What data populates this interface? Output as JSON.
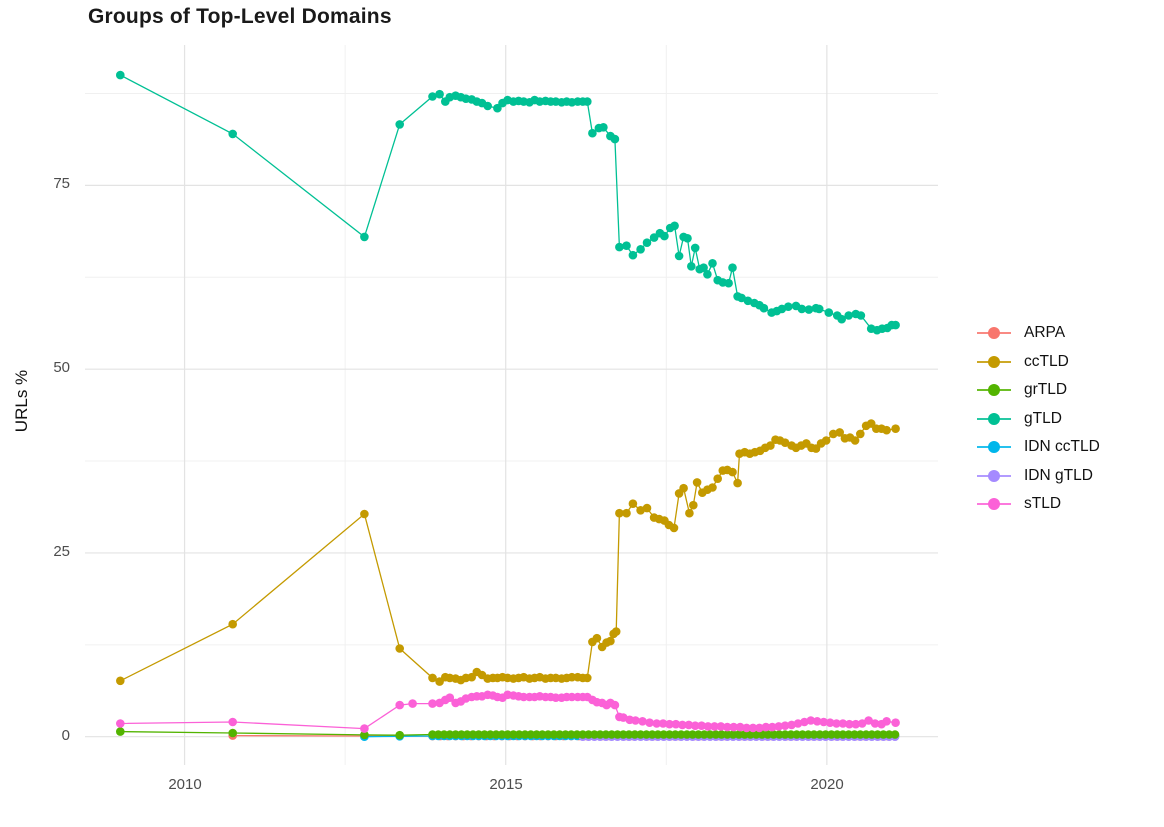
{
  "title": "Groups of Top-Level Domains",
  "y_axis": {
    "label": "URLs %",
    "tick_labels": [
      "0",
      "25",
      "50",
      "75"
    ],
    "major": [
      0,
      25,
      50,
      75
    ],
    "minor": [
      12.5,
      37.5,
      62.5,
      87.5
    ]
  },
  "x_axis": {
    "tick_labels": [
      "2010",
      "2015",
      "2020"
    ],
    "major": [
      2010,
      2015,
      2020
    ],
    "minor": [
      2012.5,
      2017.5
    ]
  },
  "legend": {
    "items": [
      {
        "label": "ARPA",
        "color": "#F8766D"
      },
      {
        "label": "ccTLD",
        "color": "#C49A00"
      },
      {
        "label": "grTLD",
        "color": "#53B400"
      },
      {
        "label": "gTLD",
        "color": "#00C094"
      },
      {
        "label": "IDN ccTLD",
        "color": "#00B6EB"
      },
      {
        "label": "IDN gTLD",
        "color": "#A58AFF"
      },
      {
        "label": "sTLD",
        "color": "#FB61D7"
      }
    ]
  },
  "chart_data": {
    "type": "line",
    "title": "Groups of Top-Level Domains",
    "xlabel": "",
    "ylabel": "URLs %",
    "xlim": [
      2008.45,
      2021.73
    ],
    "ylim": [
      -3.85,
      94.1
    ],
    "grid": true,
    "legend_position": "right",
    "grid_major_color": "#e3e3e3",
    "grid_minor_color": "#f0f0f0",
    "series": [
      {
        "name": "ARPA",
        "color": "#F8766D",
        "points": [
          [
            2010.75,
            0.15
          ],
          [
            2012.8,
            0.1
          ],
          [
            2013.35,
            0.1
          ]
        ],
        "flat": {
          "from": 2013.86,
          "to": 2021.07,
          "y": 0.08,
          "step": 0.12
        }
      },
      {
        "name": "ccTLD",
        "color": "#C49A00",
        "points": [
          [
            2009.0,
            7.6
          ],
          [
            2010.75,
            15.3
          ],
          [
            2012.8,
            30.3
          ],
          [
            2013.35,
            12.0
          ],
          [
            2013.86,
            8.0
          ],
          [
            2013.97,
            7.5
          ],
          [
            2014.06,
            8.1
          ],
          [
            2014.13,
            8.0
          ],
          [
            2014.22,
            7.9
          ],
          [
            2014.3,
            7.7
          ],
          [
            2014.38,
            8.0
          ],
          [
            2014.47,
            8.1
          ],
          [
            2014.55,
            8.8
          ],
          [
            2014.63,
            8.4
          ],
          [
            2014.72,
            7.9
          ],
          [
            2014.8,
            8.0
          ],
          [
            2014.87,
            8.0
          ],
          [
            2014.95,
            8.1
          ],
          [
            2015.03,
            8.0
          ],
          [
            2015.12,
            7.9
          ],
          [
            2015.2,
            8.0
          ],
          [
            2015.28,
            8.1
          ],
          [
            2015.37,
            7.9
          ],
          [
            2015.45,
            8.0
          ],
          [
            2015.53,
            8.1
          ],
          [
            2015.62,
            7.9
          ],
          [
            2015.7,
            8.0
          ],
          [
            2015.78,
            8.0
          ],
          [
            2015.87,
            7.9
          ],
          [
            2015.95,
            8.0
          ],
          [
            2016.03,
            8.1
          ],
          [
            2016.12,
            8.1
          ],
          [
            2016.2,
            8.0
          ],
          [
            2016.27,
            8.0
          ],
          [
            2016.35,
            12.9
          ],
          [
            2016.42,
            13.4
          ],
          [
            2016.5,
            12.2
          ],
          [
            2016.57,
            12.8
          ],
          [
            2016.63,
            13.0
          ],
          [
            2016.68,
            14.0
          ],
          [
            2016.72,
            14.3
          ],
          [
            2016.77,
            30.4
          ],
          [
            2016.88,
            30.4
          ],
          [
            2016.98,
            31.7
          ],
          [
            2017.1,
            30.8
          ],
          [
            2017.2,
            31.1
          ],
          [
            2017.31,
            29.8
          ],
          [
            2017.39,
            29.6
          ],
          [
            2017.47,
            29.4
          ],
          [
            2017.54,
            28.8
          ],
          [
            2017.62,
            28.4
          ],
          [
            2017.7,
            33.1
          ],
          [
            2017.77,
            33.8
          ],
          [
            2017.86,
            30.4
          ],
          [
            2017.92,
            31.5
          ],
          [
            2017.98,
            34.6
          ],
          [
            2018.06,
            33.2
          ],
          [
            2018.14,
            33.6
          ],
          [
            2018.22,
            33.9
          ],
          [
            2018.3,
            35.1
          ],
          [
            2018.38,
            36.2
          ],
          [
            2018.45,
            36.3
          ],
          [
            2018.53,
            36.0
          ],
          [
            2018.61,
            34.5
          ],
          [
            2018.64,
            38.5
          ],
          [
            2018.72,
            38.7
          ],
          [
            2018.8,
            38.5
          ],
          [
            2018.88,
            38.7
          ],
          [
            2018.96,
            38.9
          ],
          [
            2019.04,
            39.3
          ],
          [
            2019.12,
            39.6
          ],
          [
            2019.2,
            40.4
          ],
          [
            2019.27,
            40.3
          ],
          [
            2019.35,
            40.0
          ],
          [
            2019.45,
            39.6
          ],
          [
            2019.52,
            39.3
          ],
          [
            2019.6,
            39.6
          ],
          [
            2019.68,
            39.9
          ],
          [
            2019.76,
            39.3
          ],
          [
            2019.83,
            39.2
          ],
          [
            2019.91,
            39.9
          ],
          [
            2019.99,
            40.3
          ],
          [
            2020.1,
            41.2
          ],
          [
            2020.2,
            41.4
          ],
          [
            2020.28,
            40.6
          ],
          [
            2020.36,
            40.7
          ],
          [
            2020.44,
            40.3
          ],
          [
            2020.52,
            41.2
          ],
          [
            2020.61,
            42.3
          ],
          [
            2020.69,
            42.6
          ],
          [
            2020.77,
            41.9
          ],
          [
            2020.85,
            41.9
          ],
          [
            2020.93,
            41.7
          ],
          [
            2021.07,
            41.9
          ]
        ]
      },
      {
        "name": "grTLD",
        "color": "#53B400",
        "points": [
          [
            2009.0,
            0.7
          ],
          [
            2010.75,
            0.5
          ],
          [
            2012.8,
            0.25
          ],
          [
            2013.35,
            0.2
          ]
        ],
        "flat": {
          "from": 2013.86,
          "to": 2021.07,
          "y": 0.3,
          "step": 0.09
        }
      },
      {
        "name": "gTLD",
        "color": "#00C094",
        "points": [
          [
            2009.0,
            90.0
          ],
          [
            2010.75,
            82.0
          ],
          [
            2012.8,
            68.0
          ],
          [
            2013.35,
            83.3
          ],
          [
            2013.86,
            87.1
          ],
          [
            2013.97,
            87.4
          ],
          [
            2014.06,
            86.4
          ],
          [
            2014.13,
            87.0
          ],
          [
            2014.22,
            87.2
          ],
          [
            2014.3,
            87.0
          ],
          [
            2014.38,
            86.8
          ],
          [
            2014.47,
            86.7
          ],
          [
            2014.55,
            86.4
          ],
          [
            2014.63,
            86.2
          ],
          [
            2014.72,
            85.8
          ],
          [
            2014.87,
            85.5
          ],
          [
            2014.95,
            86.2
          ],
          [
            2015.03,
            86.6
          ],
          [
            2015.12,
            86.4
          ],
          [
            2015.2,
            86.5
          ],
          [
            2015.28,
            86.4
          ],
          [
            2015.37,
            86.3
          ],
          [
            2015.45,
            86.6
          ],
          [
            2015.53,
            86.4
          ],
          [
            2015.62,
            86.5
          ],
          [
            2015.7,
            86.4
          ],
          [
            2015.78,
            86.4
          ],
          [
            2015.87,
            86.3
          ],
          [
            2015.95,
            86.4
          ],
          [
            2016.03,
            86.3
          ],
          [
            2016.12,
            86.4
          ],
          [
            2016.2,
            86.4
          ],
          [
            2016.27,
            86.4
          ],
          [
            2016.35,
            82.1
          ],
          [
            2016.45,
            82.8
          ],
          [
            2016.52,
            82.9
          ],
          [
            2016.63,
            81.7
          ],
          [
            2016.7,
            81.3
          ],
          [
            2016.77,
            66.6
          ],
          [
            2016.88,
            66.8
          ],
          [
            2016.98,
            65.5
          ],
          [
            2017.1,
            66.3
          ],
          [
            2017.2,
            67.2
          ],
          [
            2017.31,
            67.9
          ],
          [
            2017.4,
            68.5
          ],
          [
            2017.47,
            68.1
          ],
          [
            2017.56,
            69.2
          ],
          [
            2017.63,
            69.5
          ],
          [
            2017.7,
            65.4
          ],
          [
            2017.77,
            68.0
          ],
          [
            2017.83,
            67.8
          ],
          [
            2017.89,
            64.0
          ],
          [
            2017.95,
            66.5
          ],
          [
            2018.02,
            63.6
          ],
          [
            2018.08,
            63.8
          ],
          [
            2018.14,
            62.9
          ],
          [
            2018.22,
            64.4
          ],
          [
            2018.3,
            62.1
          ],
          [
            2018.38,
            61.8
          ],
          [
            2018.47,
            61.7
          ],
          [
            2018.53,
            63.8
          ],
          [
            2018.61,
            59.9
          ],
          [
            2018.67,
            59.7
          ],
          [
            2018.77,
            59.3
          ],
          [
            2018.87,
            59.0
          ],
          [
            2018.95,
            58.7
          ],
          [
            2019.02,
            58.3
          ],
          [
            2019.14,
            57.7
          ],
          [
            2019.22,
            57.9
          ],
          [
            2019.3,
            58.2
          ],
          [
            2019.4,
            58.5
          ],
          [
            2019.52,
            58.6
          ],
          [
            2019.61,
            58.2
          ],
          [
            2019.72,
            58.1
          ],
          [
            2019.83,
            58.3
          ],
          [
            2019.88,
            58.2
          ],
          [
            2020.03,
            57.7
          ],
          [
            2020.16,
            57.3
          ],
          [
            2020.23,
            56.8
          ],
          [
            2020.34,
            57.3
          ],
          [
            2020.45,
            57.5
          ],
          [
            2020.53,
            57.3
          ],
          [
            2020.69,
            55.5
          ],
          [
            2020.78,
            55.3
          ],
          [
            2020.86,
            55.5
          ],
          [
            2020.94,
            55.6
          ],
          [
            2021.01,
            56.0
          ],
          [
            2021.07,
            56.0
          ]
        ]
      },
      {
        "name": "IDN ccTLD",
        "color": "#00B6EB",
        "points": [
          [
            2012.8,
            0.0
          ],
          [
            2013.35,
            0.05
          ]
        ],
        "flat": {
          "from": 2013.86,
          "to": 2021.07,
          "y": 0.1,
          "step": 0.09
        }
      },
      {
        "name": "IDN gTLD",
        "color": "#A58AFF",
        "points": [],
        "flat": {
          "from": 2016.2,
          "to": 2021.07,
          "y": 0.0,
          "step": 0.09
        }
      },
      {
        "name": "sTLD",
        "color": "#FB61D7",
        "points": [
          [
            2009.0,
            1.8
          ],
          [
            2010.75,
            2.0
          ],
          [
            2012.8,
            1.1
          ],
          [
            2013.35,
            4.3
          ],
          [
            2013.55,
            4.5
          ],
          [
            2013.86,
            4.5
          ],
          [
            2013.97,
            4.6
          ],
          [
            2014.06,
            5.0
          ],
          [
            2014.13,
            5.3
          ],
          [
            2014.22,
            4.6
          ],
          [
            2014.3,
            4.8
          ],
          [
            2014.38,
            5.2
          ],
          [
            2014.47,
            5.4
          ],
          [
            2014.55,
            5.5
          ],
          [
            2014.63,
            5.5
          ],
          [
            2014.72,
            5.7
          ],
          [
            2014.8,
            5.6
          ],
          [
            2014.87,
            5.4
          ],
          [
            2014.95,
            5.3
          ],
          [
            2015.03,
            5.7
          ],
          [
            2015.12,
            5.6
          ],
          [
            2015.2,
            5.5
          ],
          [
            2015.28,
            5.4
          ],
          [
            2015.37,
            5.4
          ],
          [
            2015.45,
            5.4
          ],
          [
            2015.53,
            5.5
          ],
          [
            2015.62,
            5.4
          ],
          [
            2015.7,
            5.4
          ],
          [
            2015.78,
            5.3
          ],
          [
            2015.87,
            5.3
          ],
          [
            2015.95,
            5.4
          ],
          [
            2016.03,
            5.4
          ],
          [
            2016.12,
            5.4
          ],
          [
            2016.2,
            5.4
          ],
          [
            2016.27,
            5.4
          ],
          [
            2016.35,
            5.0
          ],
          [
            2016.42,
            4.7
          ],
          [
            2016.5,
            4.6
          ],
          [
            2016.57,
            4.3
          ],
          [
            2016.63,
            4.6
          ],
          [
            2016.7,
            4.3
          ],
          [
            2016.77,
            2.7
          ],
          [
            2016.83,
            2.6
          ],
          [
            2016.93,
            2.3
          ],
          [
            2017.02,
            2.2
          ],
          [
            2017.13,
            2.1
          ],
          [
            2017.24,
            1.9
          ],
          [
            2017.35,
            1.8
          ],
          [
            2017.45,
            1.8
          ],
          [
            2017.55,
            1.7
          ],
          [
            2017.65,
            1.7
          ],
          [
            2017.75,
            1.6
          ],
          [
            2017.85,
            1.6
          ],
          [
            2017.95,
            1.5
          ],
          [
            2018.05,
            1.5
          ],
          [
            2018.15,
            1.4
          ],
          [
            2018.25,
            1.4
          ],
          [
            2018.35,
            1.4
          ],
          [
            2018.45,
            1.3
          ],
          [
            2018.55,
            1.3
          ],
          [
            2018.65,
            1.3
          ],
          [
            2018.75,
            1.2
          ],
          [
            2018.85,
            1.2
          ],
          [
            2018.95,
            1.2
          ],
          [
            2019.05,
            1.3
          ],
          [
            2019.15,
            1.3
          ],
          [
            2019.25,
            1.4
          ],
          [
            2019.35,
            1.5
          ],
          [
            2019.45,
            1.6
          ],
          [
            2019.55,
            1.8
          ],
          [
            2019.65,
            2.0
          ],
          [
            2019.75,
            2.2
          ],
          [
            2019.85,
            2.1
          ],
          [
            2019.95,
            2.0
          ],
          [
            2020.05,
            1.9
          ],
          [
            2020.15,
            1.8
          ],
          [
            2020.25,
            1.8
          ],
          [
            2020.35,
            1.7
          ],
          [
            2020.45,
            1.7
          ],
          [
            2020.55,
            1.8
          ],
          [
            2020.65,
            2.2
          ],
          [
            2020.75,
            1.8
          ],
          [
            2020.85,
            1.7
          ],
          [
            2020.93,
            2.1
          ],
          [
            2021.07,
            1.9
          ]
        ]
      }
    ]
  }
}
